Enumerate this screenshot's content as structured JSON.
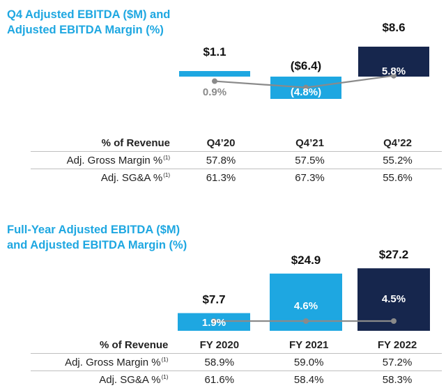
{
  "chart_data": [
    {
      "type": "bar",
      "title": "Q4 Adjusted EBITDA ($M) and Adjusted EBITDA Margin (%)",
      "title_lines": [
        "Q4 Adjusted EBITDA ($M) and",
        "Adjusted EBITDA Margin (%)"
      ],
      "categories": [
        "Q4'20",
        "Q4'21",
        "Q4'22"
      ],
      "series": [
        {
          "name": "Adjusted EBITDA ($M)",
          "values": [
            1.1,
            -6.4,
            8.6
          ],
          "labels": [
            "$1.1",
            "($6.4)",
            "$8.6"
          ],
          "colors": [
            "#1ea7e1",
            "#1ea7e1",
            "#16264d"
          ]
        },
        {
          "name": "Adjusted EBITDA Margin (%)",
          "values": [
            0.9,
            -4.8,
            5.8
          ],
          "labels": [
            "0.9%",
            "(4.8%)",
            "5.8%"
          ],
          "line_color": "#8a8a8a"
        }
      ],
      "ylim": [
        -8,
        9
      ],
      "table": {
        "header": [
          "% of Revenue",
          "Q4’20",
          "Q4’21",
          "Q4’22"
        ],
        "rows": [
          {
            "label": "Adj. Gross Margin %",
            "note": "(1)",
            "values": [
              "57.8%",
              "57.5%",
              "55.2%"
            ]
          },
          {
            "label": "Adj. SG&A %",
            "note": "(1)",
            "values": [
              "61.3%",
              "67.3%",
              "55.6%"
            ]
          }
        ]
      }
    },
    {
      "type": "bar",
      "title": "Full-Year Adjusted EBITDA ($M) and Adjusted EBITDA Margin (%)",
      "title_lines": [
        "Full-Year Adjusted EBITDA ($M)",
        "and Adjusted EBITDA Margin (%)"
      ],
      "categories": [
        "FY 2020",
        "FY 2021",
        "FY 2022"
      ],
      "series": [
        {
          "name": "Adjusted EBITDA ($M)",
          "values": [
            7.7,
            24.9,
            27.2
          ],
          "labels": [
            "$7.7",
            "$24.9",
            "$27.2"
          ],
          "colors": [
            "#1ea7e1",
            "#1ea7e1",
            "#16264d"
          ]
        },
        {
          "name": "Adjusted EBITDA Margin (%)",
          "values": [
            1.9,
            4.6,
            4.5
          ],
          "labels": [
            "1.9%",
            "4.6%",
            "4.5%"
          ],
          "line_color": "#8a8a8a"
        }
      ],
      "ylim": [
        0,
        28
      ],
      "table": {
        "header": [
          "% of Revenue",
          "FY 2020",
          "FY 2021",
          "FY 2022"
        ],
        "rows": [
          {
            "label": "Adj. Gross Margin %",
            "note": "(1)",
            "values": [
              "58.9%",
              "59.0%",
              "57.2%"
            ]
          },
          {
            "label": "Adj. SG&A %",
            "note": "(1)",
            "values": [
              "61.6%",
              "58.4%",
              "58.3%"
            ]
          }
        ]
      }
    }
  ]
}
